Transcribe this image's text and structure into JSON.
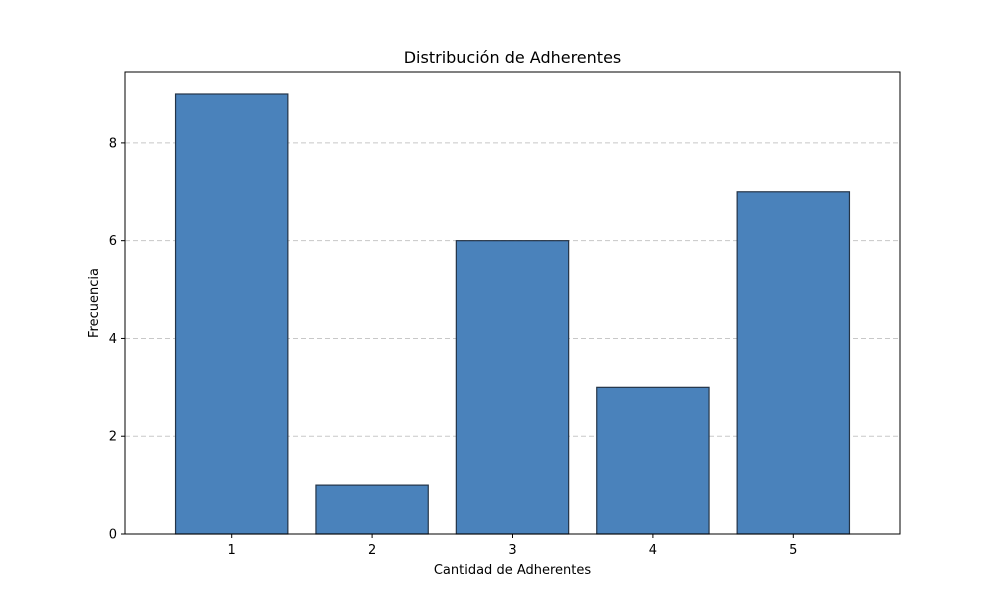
{
  "chart_data": {
    "type": "bar",
    "title": "Distribución de Adherentes",
    "xlabel": "Cantidad de Adherentes",
    "ylabel": "Frecuencia",
    "categories": [
      "1",
      "2",
      "3",
      "4",
      "5"
    ],
    "values": [
      9,
      1,
      6,
      3,
      7
    ],
    "xlim": [
      0.24,
      5.76
    ],
    "ylim": [
      0,
      9.45
    ],
    "yticks": [
      0,
      2,
      4,
      6,
      8
    ],
    "grid": "y-dashed",
    "bar_color": "#4a82bb",
    "bar_edge_color": "#243447",
    "grid_color": "#c8c8c8"
  }
}
